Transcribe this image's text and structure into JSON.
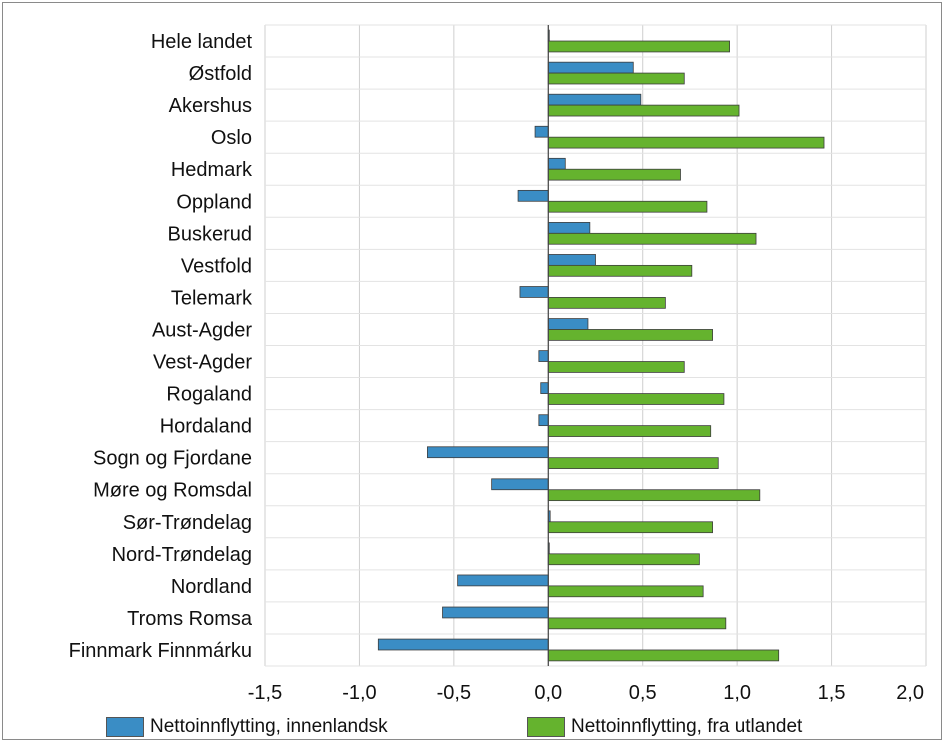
{
  "chart_data": {
    "type": "bar",
    "orientation": "horizontal",
    "title": "",
    "xlabel": "",
    "ylabel": "",
    "xlim": [
      -1.5,
      2.0
    ],
    "x_ticks": [
      -1.5,
      -1.0,
      -0.5,
      0.0,
      0.5,
      1.0,
      1.5,
      2.0
    ],
    "x_tick_labels": [
      "-1,5",
      "-1,0",
      "-0,5",
      "0,0",
      "0,5",
      "1,0",
      "1,5",
      "2,0"
    ],
    "grid": "vertical",
    "legend_position": "bottom",
    "categories": [
      "Hele landet",
      "Østfold",
      "Akershus",
      "Oslo",
      "Hedmark",
      "Oppland",
      "Buskerud",
      "Vestfold",
      "Telemark",
      "Aust-Agder",
      "Vest-Agder",
      "Rogaland",
      "Hordaland",
      "Sogn og Fjordane",
      "Møre og Romsdal",
      "Sør-Trøndelag",
      "Nord-Trøndelag",
      "Nordland",
      "Troms Romsa",
      "Finnmark Finnmárku"
    ],
    "series": [
      {
        "name": "Nettoinnflytting, innenlandsk",
        "color": "#3a8dc5",
        "values": [
          0.0,
          0.45,
          0.49,
          -0.07,
          0.09,
          -0.16,
          0.22,
          0.25,
          -0.15,
          0.21,
          -0.05,
          -0.04,
          -0.05,
          -0.64,
          -0.3,
          0.01,
          0.0,
          -0.48,
          -0.56,
          -0.9
        ]
      },
      {
        "name": "Nettoinnflytting, fra utlandet",
        "color": "#65b32e",
        "values": [
          0.96,
          0.72,
          1.01,
          1.46,
          0.7,
          0.84,
          1.1,
          0.76,
          0.62,
          0.87,
          0.72,
          0.93,
          0.86,
          0.9,
          1.12,
          0.87,
          0.8,
          0.82,
          0.94,
          1.22
        ]
      }
    ]
  }
}
